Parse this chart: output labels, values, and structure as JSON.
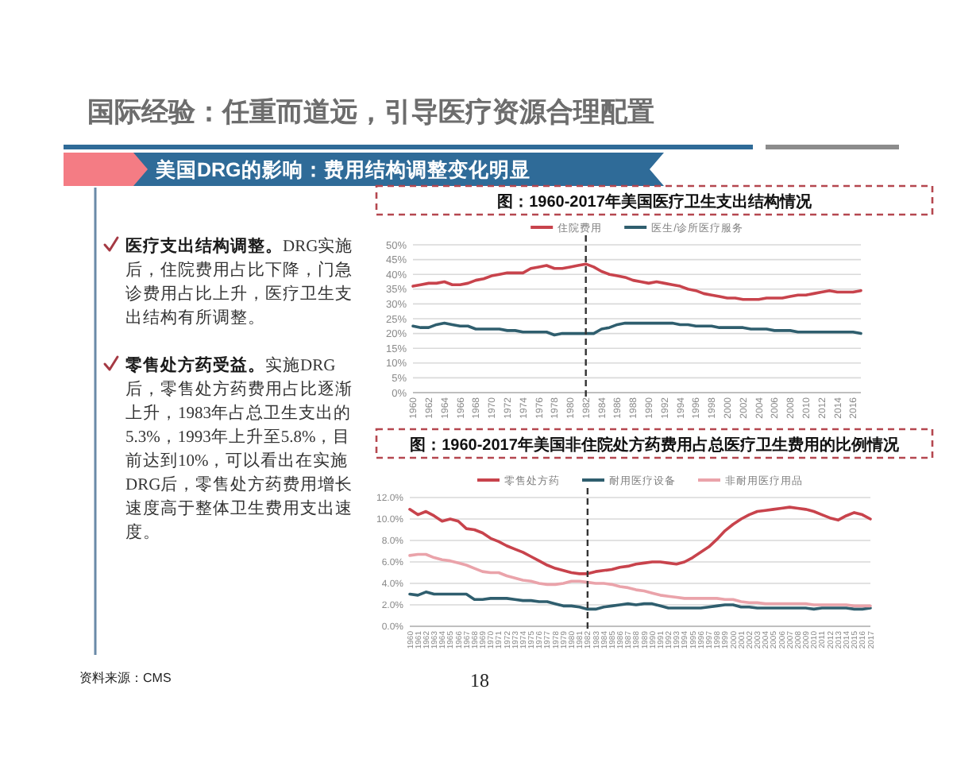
{
  "chart_data": [
    {
      "type": "other",
      "title": "国际经验：任重而道远，引导医疗资源合理配置",
      "subtitle": "美国DRG的影响：费用结构调整变化明显",
      "annotations": [
        "医疗支出结构调整。DRG实施后，住院费用占比下降，门急诊费用占比上升，医疗卫生支出结构有所调整。",
        "零售处方药受益。实施DRG后，零售处方药费用占比逐渐上升，1983年占总卫生支出的5.3%，1993年上升至5.8%，目前达到10%，可以看出在实施DRG后，零售处方药费用增长速度高于整体卫生费用支出速度。",
        "资料来源：CMS",
        "18"
      ]
    },
    {
      "type": "line",
      "title": "图：1960-2017年美国医疗卫生支出结构情况",
      "x": [
        1960,
        1961,
        1962,
        1963,
        1964,
        1965,
        1966,
        1967,
        1968,
        1969,
        1970,
        1971,
        1972,
        1973,
        1974,
        1975,
        1976,
        1977,
        1978,
        1979,
        1980,
        1981,
        1982,
        1983,
        1984,
        1985,
        1986,
        1987,
        1988,
        1989,
        1990,
        1991,
        1992,
        1993,
        1994,
        1995,
        1996,
        1997,
        1998,
        1999,
        2000,
        2001,
        2002,
        2003,
        2004,
        2005,
        2006,
        2007,
        2008,
        2009,
        2010,
        2011,
        2012,
        2013,
        2014,
        2015,
        2016,
        2017
      ],
      "xlim": [
        1960,
        2017
      ],
      "xticks": [
        1960,
        1962,
        1964,
        1966,
        1968,
        1970,
        1972,
        1974,
        1976,
        1978,
        1980,
        1982,
        1984,
        1986,
        1988,
        1990,
        1992,
        1994,
        1996,
        1998,
        2000,
        2002,
        2004,
        2006,
        2008,
        2010,
        2012,
        2014,
        2016
      ],
      "ylim": [
        0,
        50
      ],
      "yticks": [
        {
          "value": 0,
          "label": "0%"
        },
        {
          "value": 5,
          "label": "5%"
        },
        {
          "value": 10,
          "label": "10%"
        },
        {
          "value": 15,
          "label": "15%"
        },
        {
          "value": 20,
          "label": "20%"
        },
        {
          "value": 25,
          "label": "25%"
        },
        {
          "value": 30,
          "label": "30%"
        },
        {
          "value": 35,
          "label": "35%"
        },
        {
          "value": 40,
          "label": "40%"
        },
        {
          "value": 45,
          "label": "45%"
        },
        {
          "value": 50,
          "label": "50%"
        }
      ],
      "grid": "y",
      "legend": "top",
      "ref_lines": [
        {
          "axis": "x",
          "value": 1982,
          "color": "#333333",
          "line_style": "dashed"
        }
      ],
      "series": [
        {
          "name": "住院费用",
          "color": "#c8434c",
          "values": [
            36,
            36.5,
            37,
            37,
            37.5,
            36.5,
            36.5,
            37,
            38,
            38.5,
            39.5,
            40,
            40.5,
            40.5,
            40.5,
            42,
            42.5,
            43,
            42,
            42,
            42.5,
            43,
            43.5,
            42.5,
            41,
            40,
            39.5,
            39,
            38,
            37.5,
            37,
            37.5,
            37,
            36.5,
            36,
            35,
            34.5,
            33.5,
            33,
            32.5,
            32,
            32,
            31.5,
            31.5,
            31.5,
            32,
            32,
            32,
            32.5,
            33,
            33,
            33.5,
            34,
            34.5,
            34,
            34,
            34,
            34.5
          ]
        },
        {
          "name": "医生/诊所医疗服务",
          "color": "#2f5e6e",
          "values": [
            22.5,
            22,
            22,
            23,
            23.5,
            23,
            22.5,
            22.5,
            21.5,
            21.5,
            21.5,
            21.5,
            21,
            21,
            20.5,
            20.5,
            20.5,
            20.5,
            19.5,
            20,
            20,
            20,
            20,
            20,
            21.5,
            22,
            23,
            23.5,
            23.5,
            23.5,
            23.5,
            23.5,
            23.5,
            23.5,
            23,
            23,
            22.5,
            22.5,
            22.5,
            22,
            22,
            22,
            22,
            21.5,
            21.5,
            21.5,
            21,
            21,
            21,
            20.5,
            20.5,
            20.5,
            20.5,
            20.5,
            20.5,
            20.5,
            20.5,
            20
          ]
        }
      ]
    },
    {
      "type": "line",
      "title": "图：1960-2017年美国非住院处方药费用占总医疗卫生费用的比例情况",
      "x": [
        1960,
        1961,
        1962,
        1963,
        1964,
        1965,
        1966,
        1967,
        1968,
        1969,
        1970,
        1971,
        1972,
        1973,
        1974,
        1975,
        1976,
        1977,
        1978,
        1979,
        1980,
        1981,
        1982,
        1983,
        1984,
        1985,
        1986,
        1987,
        1988,
        1989,
        1990,
        1991,
        1992,
        1993,
        1994,
        1995,
        1996,
        1997,
        1998,
        1999,
        2000,
        2001,
        2002,
        2003,
        2004,
        2005,
        2006,
        2007,
        2008,
        2009,
        2010,
        2011,
        2012,
        2013,
        2014,
        2015,
        2016,
        2017
      ],
      "xlim": [
        1960,
        2017
      ],
      "xticks": [
        1960,
        1961,
        1962,
        1963,
        1964,
        1965,
        1966,
        1967,
        1968,
        1969,
        1970,
        1971,
        1972,
        1973,
        1974,
        1975,
        1976,
        1977,
        1978,
        1979,
        1980,
        1981,
        1982,
        1983,
        1984,
        1985,
        1986,
        1987,
        1988,
        1989,
        1990,
        1991,
        1992,
        1993,
        1994,
        1995,
        1996,
        1997,
        1998,
        1999,
        2000,
        2001,
        2002,
        2003,
        2004,
        2005,
        2006,
        2007,
        2008,
        2009,
        2010,
        2011,
        2012,
        2013,
        2014,
        2015,
        2016,
        2017
      ],
      "ylim": [
        0,
        12
      ],
      "yticks": [
        {
          "value": 0,
          "label": "0.0%"
        },
        {
          "value": 2,
          "label": "2.0%"
        },
        {
          "value": 4,
          "label": "4.0%"
        },
        {
          "value": 6,
          "label": "6.0%"
        },
        {
          "value": 8,
          "label": "8.0%"
        },
        {
          "value": 10,
          "label": "10.0%"
        },
        {
          "value": 12,
          "label": "12.0%"
        }
      ],
      "grid": "y",
      "legend": "top",
      "ref_lines": [
        {
          "axis": "x",
          "value": 1982,
          "color": "#333333",
          "line_style": "dashed"
        }
      ],
      "series": [
        {
          "name": "零售处方药",
          "color": "#c8434c",
          "values": [
            10.9,
            10.4,
            10.7,
            10.3,
            9.8,
            10,
            9.8,
            9.1,
            9,
            8.7,
            8.2,
            7.9,
            7.5,
            7.2,
            6.9,
            6.5,
            6.1,
            5.7,
            5.4,
            5.2,
            5,
            4.9,
            4.9,
            5.1,
            5.2,
            5.3,
            5.5,
            5.6,
            5.8,
            5.9,
            6,
            6,
            5.9,
            5.8,
            6,
            6.4,
            6.9,
            7.4,
            8.1,
            8.9,
            9.5,
            10,
            10.4,
            10.7,
            10.8,
            10.9,
            11,
            11.1,
            11,
            10.9,
            10.7,
            10.4,
            10.1,
            9.9,
            10.3,
            10.6,
            10.4,
            10
          ]
        },
        {
          "name": "耐用医疗设备",
          "color": "#2f5e6e",
          "values": [
            3,
            2.9,
            3.2,
            3,
            3,
            3,
            3,
            3,
            2.5,
            2.5,
            2.6,
            2.6,
            2.6,
            2.5,
            2.4,
            2.4,
            2.3,
            2.3,
            2.1,
            1.9,
            1.9,
            1.8,
            1.6,
            1.6,
            1.8,
            1.9,
            2,
            2.1,
            2,
            2.1,
            2.1,
            1.9,
            1.7,
            1.7,
            1.7,
            1.7,
            1.7,
            1.8,
            1.9,
            2,
            2,
            1.8,
            1.8,
            1.7,
            1.7,
            1.7,
            1.7,
            1.7,
            1.7,
            1.7,
            1.6,
            1.7,
            1.7,
            1.7,
            1.7,
            1.6,
            1.6,
            1.7
          ]
        },
        {
          "name": "非耐用医疗用品",
          "color": "#eaa3aa",
          "values": [
            6.6,
            6.7,
            6.7,
            6.4,
            6.2,
            6.1,
            5.9,
            5.7,
            5.4,
            5.1,
            5,
            5,
            4.7,
            4.5,
            4.3,
            4.2,
            4,
            3.9,
            3.9,
            4,
            4.2,
            4.2,
            4.1,
            4,
            4,
            3.9,
            3.7,
            3.6,
            3.4,
            3.3,
            3.1,
            2.9,
            2.8,
            2.7,
            2.6,
            2.6,
            2.6,
            2.6,
            2.6,
            2.5,
            2.5,
            2.3,
            2.2,
            2.2,
            2.1,
            2.1,
            2.1,
            2.1,
            2.1,
            2.1,
            2,
            2,
            2,
            2,
            2,
            1.9,
            1.9,
            1.9
          ]
        }
      ]
    }
  ]
}
